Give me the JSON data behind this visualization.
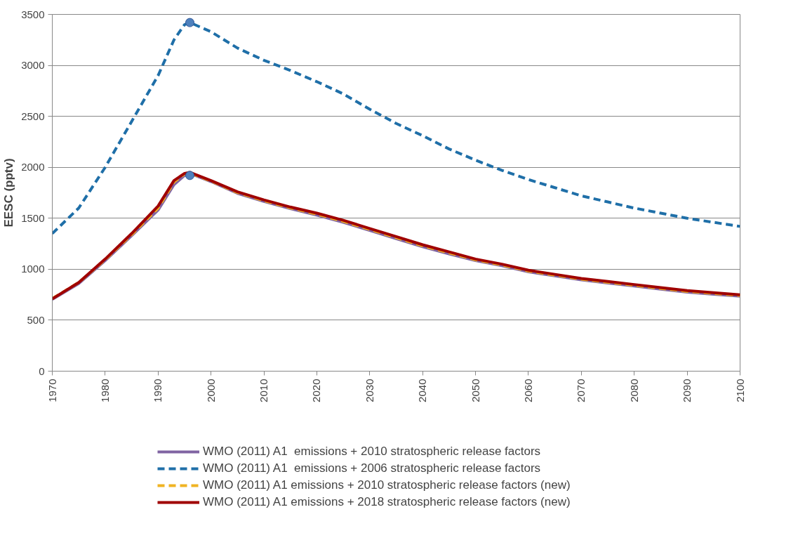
{
  "chart_data": {
    "type": "line",
    "ylabel": "EESC (pptv)",
    "x": [
      1970,
      1975,
      1980,
      1985,
      1990,
      1993,
      1995,
      1996,
      2000,
      2005,
      2010,
      2015,
      2020,
      2025,
      2030,
      2035,
      2040,
      2045,
      2050,
      2055,
      2060,
      2065,
      2070,
      2075,
      2080,
      2085,
      2090,
      2095,
      2100
    ],
    "series": [
      {
        "name": "WMO (2011) A1  emissions + 2010 stratospheric release factors",
        "color": "#8064a2",
        "line_style": "solid",
        "values": [
          705,
          860,
          1085,
          1330,
          1580,
          1830,
          1920,
          1940,
          1860,
          1745,
          1665,
          1595,
          1530,
          1460,
          1380,
          1300,
          1220,
          1150,
          1085,
          1035,
          975,
          935,
          895,
          865,
          835,
          805,
          775,
          755,
          735
        ]
      },
      {
        "name": "WMO (2011) A1  emissions + 2006 stratospheric release factors",
        "color": "#1f6fa8",
        "line_style": "dashed",
        "values": [
          1350,
          1600,
          2000,
          2450,
          2900,
          3250,
          3400,
          3420,
          3330,
          3170,
          3050,
          2950,
          2840,
          2720,
          2570,
          2430,
          2310,
          2180,
          2070,
          1970,
          1880,
          1800,
          1720,
          1660,
          1600,
          1550,
          1500,
          1460,
          1420
        ]
      },
      {
        "name": "WMO (2011) A1 emissions + 2010 stratospheric release factors (new)",
        "color": "#f0b323",
        "line_style": "dashed",
        "values": [
          712,
          870,
          1095,
          1340,
          1600,
          1855,
          1935,
          1945,
          1865,
          1752,
          1672,
          1602,
          1540,
          1470,
          1390,
          1310,
          1230,
          1160,
          1092,
          1042,
          982,
          942,
          902,
          872,
          842,
          812,
          782,
          762,
          742
        ]
      },
      {
        "name": "WMO (2011) A1 emissions + 2018 stratospheric release factors (new)",
        "color": "#a00000",
        "line_style": "solid",
        "values": [
          710,
          870,
          1100,
          1350,
          1620,
          1870,
          1940,
          1950,
          1870,
          1760,
          1680,
          1610,
          1550,
          1480,
          1400,
          1320,
          1240,
          1170,
          1100,
          1050,
          990,
          950,
          910,
          880,
          850,
          820,
          790,
          770,
          750
        ]
      },
      {
        "type": "scatter",
        "marker": "circle",
        "color": "#4f81bd",
        "x": [
          1996,
          1996
        ],
        "values": [
          3420,
          1920
        ]
      }
    ],
    "xlim": [
      1970,
      2100
    ],
    "xticks": [
      1970,
      1980,
      1990,
      2000,
      2010,
      2020,
      2030,
      2040,
      2050,
      2060,
      2070,
      2080,
      2090,
      2100
    ],
    "ylim": [
      0,
      3500
    ],
    "yticks": [
      0,
      500,
      1000,
      1500,
      2000,
      2500,
      3000,
      3500
    ],
    "grid": "y",
    "legend": "bottom"
  }
}
